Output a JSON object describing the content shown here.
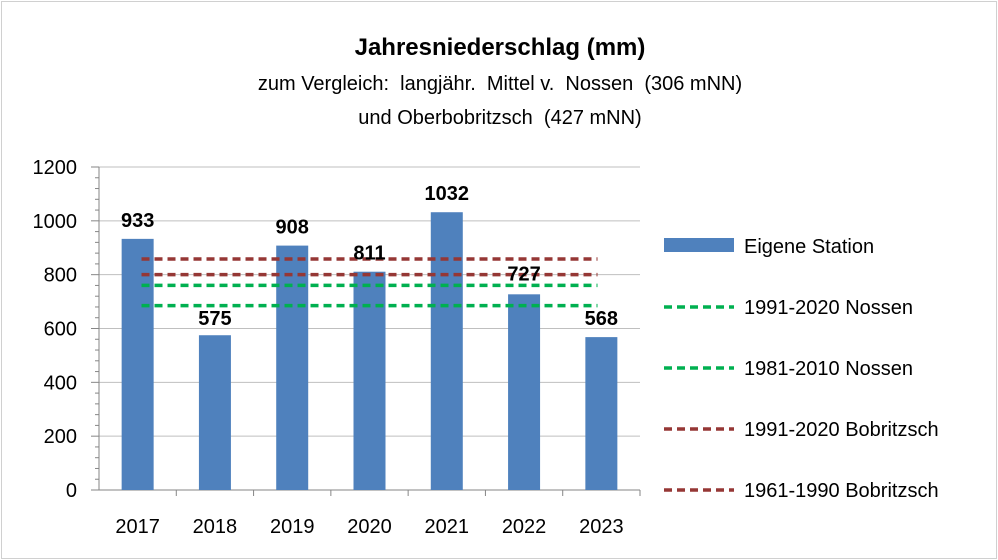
{
  "chart_data": {
    "type": "bar",
    "title": "Jahresniederschlag (mm)",
    "subtitle_lines": [
      "zum Vergleich:  langjähr.  Mittel v.  Nossen  (306 mNN)",
      "und Oberbobritzsch  (427 mNN)"
    ],
    "categories": [
      "2017",
      "2018",
      "2019",
      "2020",
      "2021",
      "2022",
      "2023"
    ],
    "series": [
      {
        "name": "Eigene Station",
        "values": [
          933,
          575,
          908,
          811,
          1032,
          727,
          568
        ],
        "color": "#4f81bd"
      }
    ],
    "reference_lines": [
      {
        "name": "1991-2020 Nossen",
        "value": 685,
        "color": "#00b050",
        "dash": true
      },
      {
        "name": "1981-2010 Nossen",
        "value": 760,
        "color": "#00b050",
        "dash": true
      },
      {
        "name": "1991-2020 Bobritzsch",
        "value": 858,
        "color": "#953735",
        "dash": true
      },
      {
        "name": "1961-1990 Bobritzsch",
        "value": 800,
        "color": "#953735",
        "dash": true
      }
    ],
    "y_ticks": [
      "0",
      "200",
      "400",
      "600",
      "800",
      "1000",
      "1200"
    ],
    "ylim": [
      0,
      1200
    ],
    "grid": true,
    "legend_position": "right"
  }
}
